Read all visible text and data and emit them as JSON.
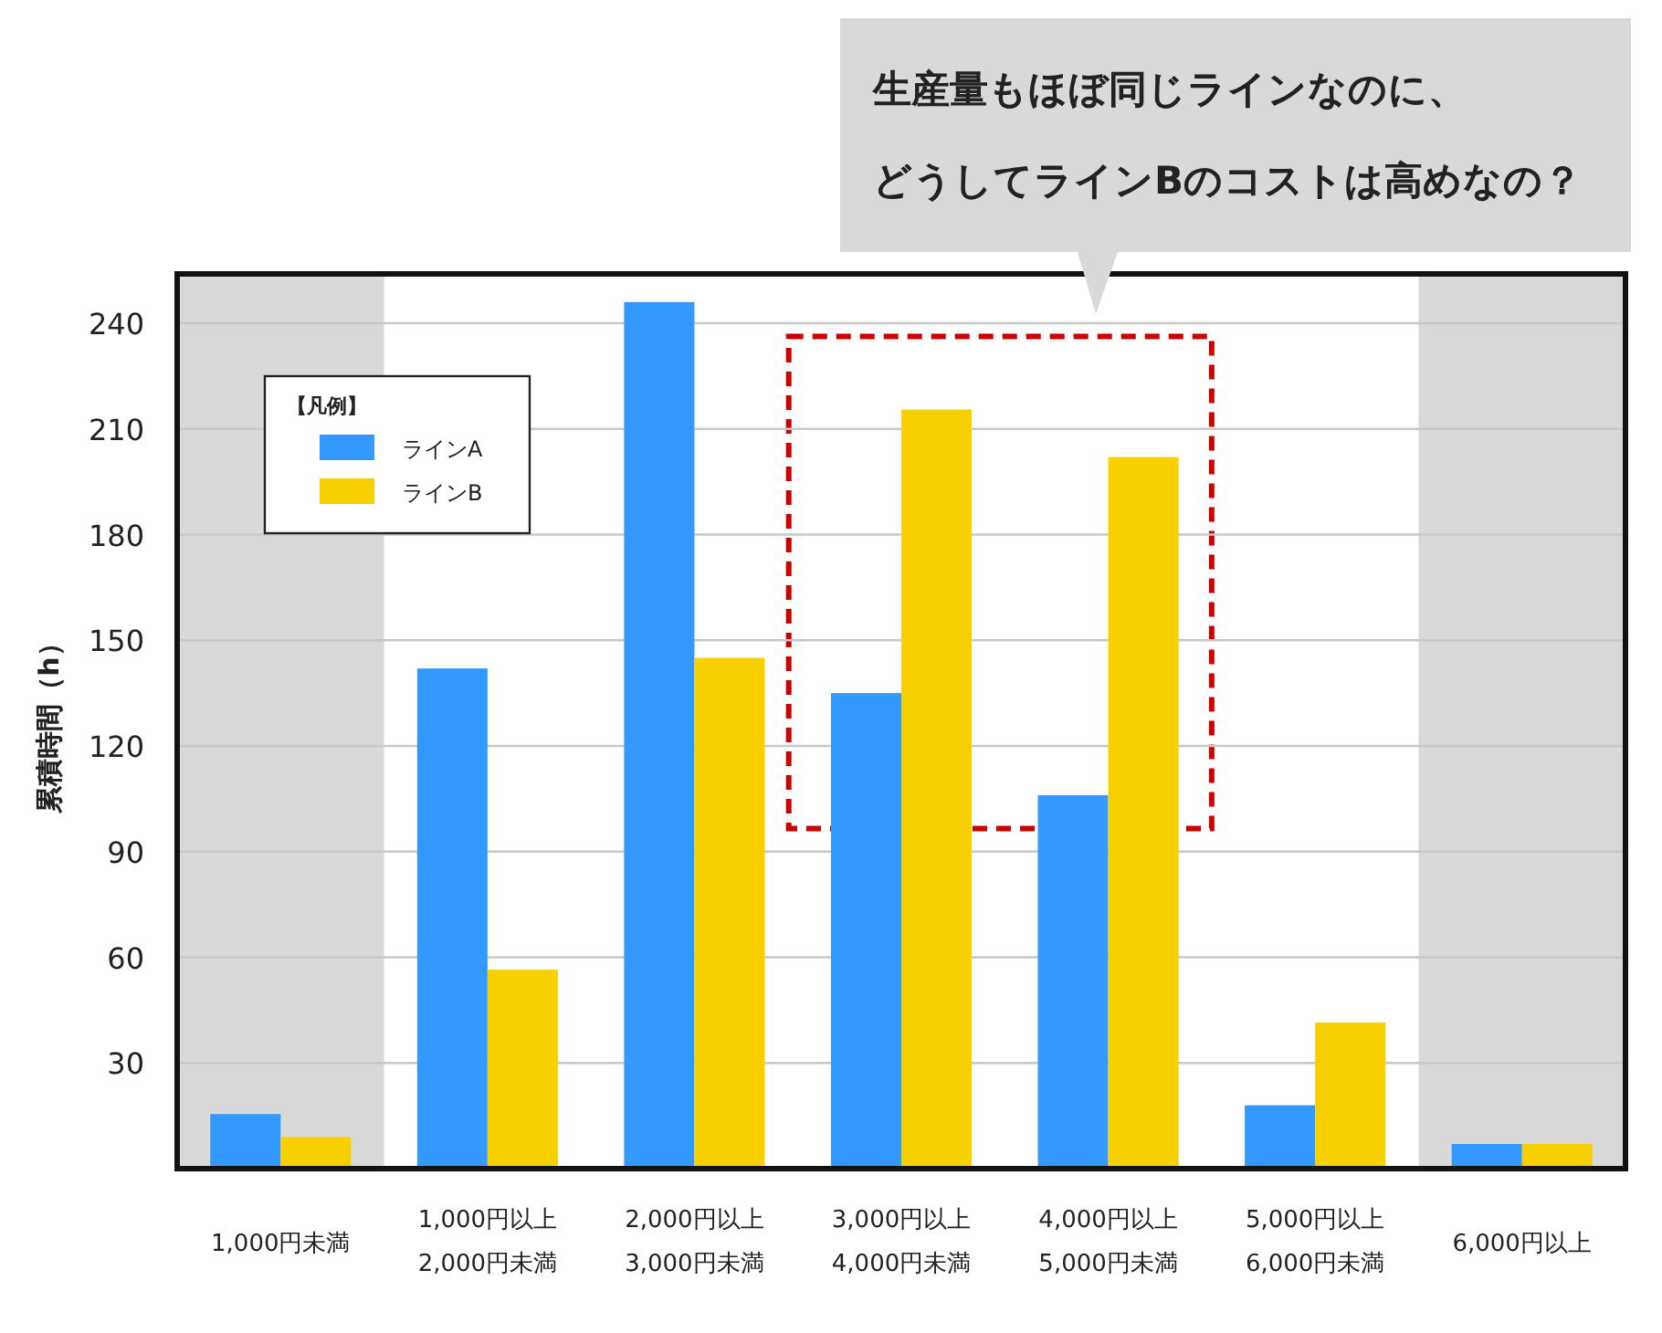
{
  "chart_data": {
    "type": "bar",
    "ylabel": "累積時間（h）",
    "legend_title": "【凡例】",
    "legend": "top left",
    "grid": "y",
    "categories": [
      "1,000円未満",
      "1,000円以上\n2,000円未満",
      "2,000円以上\n3,000円未満",
      "3,000円以上\n4,000円未満",
      "4,000円以上\n5,000円未満",
      "5,000円以上\n6,000円未満",
      "6,000円以上"
    ],
    "series": [
      {
        "name": "ラインA",
        "color": "#3399ff",
        "values": [
          15.5,
          142,
          246,
          135,
          106,
          18,
          7
        ]
      },
      {
        "name": "ラインB",
        "color": "#f8d000",
        "values": [
          9,
          56.5,
          145,
          215.5,
          202,
          41.5,
          7
        ]
      }
    ],
    "ylim": [
      0,
      254
    ],
    "yticks": [
      30,
      60,
      90,
      120,
      150,
      180,
      210,
      240
    ],
    "bands": [
      {
        "axis": "x",
        "from": "1,000円未満",
        "to": "1,000円未満",
        "color": "#d9d9d9"
      },
      {
        "axis": "x",
        "from": "6,000円以上",
        "to": "6,000円以上",
        "color": "#d9d9d9"
      }
    ],
    "annotations": [
      "生産量もほぼ同じラインなのに、どうしてラインBのコストは高めなの？"
    ]
  }
}
